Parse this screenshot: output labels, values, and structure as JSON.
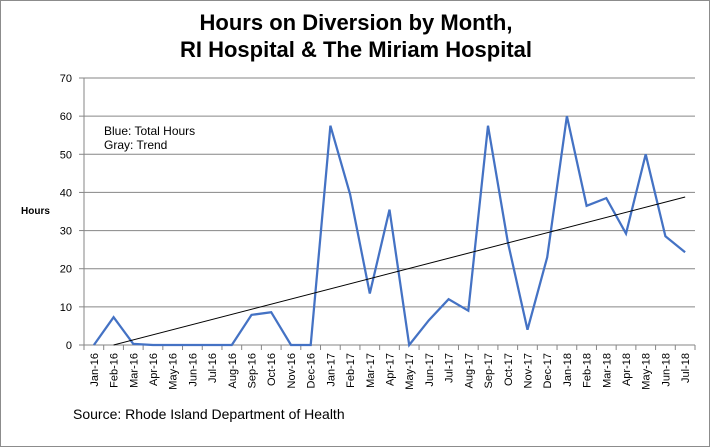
{
  "chart_data": {
    "type": "line",
    "title": "Hours on Diversion by Month,",
    "subtitle": "RI Hospital & The Miriam Hospital",
    "xlabel": "",
    "ylabel": "Hours",
    "ylim": [
      0,
      70
    ],
    "yticks": [
      0,
      10,
      20,
      30,
      40,
      50,
      60,
      70
    ],
    "grid": true,
    "legend_position": "none",
    "annotations": [
      "Blue: Total Hours",
      "Gray: Trend"
    ],
    "source": "Source: Rhode Island Department of Health",
    "categories": [
      "Jan-16",
      "Feb-16",
      "Mar-16",
      "Apr-16",
      "May-16",
      "Jun-16",
      "Jul-16",
      "Aug-16",
      "Sep-16",
      "Oct-16",
      "Nov-16",
      "Dec-16",
      "Jan-17",
      "Feb-17",
      "Mar-17",
      "Apr-17",
      "May-17",
      "Jun-17",
      "Jul-17",
      "Aug-17",
      "Sep-17",
      "Oct-17",
      "Nov-17",
      "Dec-17",
      "Jan-18",
      "Feb-18",
      "Mar-18",
      "Apr-18",
      "May-18",
      "Jun-18",
      "Jul-18"
    ],
    "series": [
      {
        "name": "Total Hours",
        "color": "#4472c4",
        "values": [
          0,
          7.3,
          0.3,
          0,
          0,
          0,
          0,
          0,
          7.9,
          8.6,
          0,
          0,
          57.5,
          39.5,
          13.5,
          35.5,
          0,
          6.5,
          12,
          9,
          57.5,
          27,
          4,
          23,
          60,
          36.5,
          38.5,
          29.2,
          50,
          28.5,
          24.3
        ]
      },
      {
        "name": "Trend",
        "color": "#000000",
        "type": "linear-trend",
        "start": {
          "category": "Feb-16",
          "value": 0
        },
        "end": {
          "category": "Jul-18",
          "value": 38.8
        }
      }
    ]
  },
  "labels": {
    "title_line1": "Hours on Diversion by Month,",
    "title_line2": "RI Hospital & The Miriam Hospital",
    "y_axis_title": "Hours",
    "note_line1": "Blue: Total Hours",
    "note_line2": "Gray: Trend",
    "source": "Source: Rhode Island Department of Health"
  }
}
